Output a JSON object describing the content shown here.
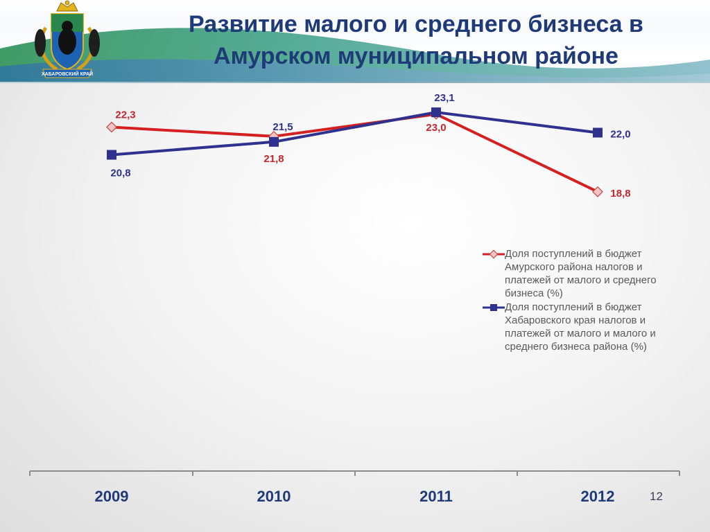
{
  "title": {
    "line1": "Развитие малого и среднего бизнеса в",
    "line2": "Амурском муниципальном районе"
  },
  "emblem": {
    "caption": "ХАБАРОВСКИЙ КРАЙ"
  },
  "colors": {
    "title": "#1f3a78",
    "series_amur": "#d42020",
    "series_khab": "#2e318d",
    "axis": "#8c8c8c",
    "header_accent": "#2e8b57"
  },
  "chart_data": {
    "type": "line",
    "categories": [
      "2009",
      "2010",
      "2011",
      "2012"
    ],
    "ylim": [
      16,
      25
    ],
    "grid": false,
    "legend_position": "right",
    "series": [
      {
        "name": "Доля поступлений в бюджет Амурского района налогов и платежей от малого и среднего бизнеса (%)",
        "values": [
          22.3,
          21.8,
          23.0,
          18.8
        ],
        "labels": [
          "22,3",
          "21,8",
          "23,0",
          "18,8"
        ],
        "marker": "diamond"
      },
      {
        "name": "Доля поступлений в бюджет Хабаровского края налогов и платежей от малого и малого и среднего бизнеса района (%)",
        "values": [
          20.8,
          21.5,
          23.1,
          22.0
        ],
        "labels": [
          "20,8",
          "21,5",
          "23,1",
          "22,0"
        ],
        "marker": "square"
      }
    ]
  },
  "legend": {
    "items": [
      {
        "lines": [
          "Доля поступлений в бюджет",
          "Амурского района налогов и",
          "платежей от малого и среднего",
          "бизнеса (%)"
        ]
      },
      {
        "lines": [
          "Доля поступлений в бюджет",
          "Хабаровского края налогов и",
          "платежей от малого и малого и",
          "среднего бизнеса района (%)"
        ]
      }
    ]
  },
  "page_number": "12"
}
